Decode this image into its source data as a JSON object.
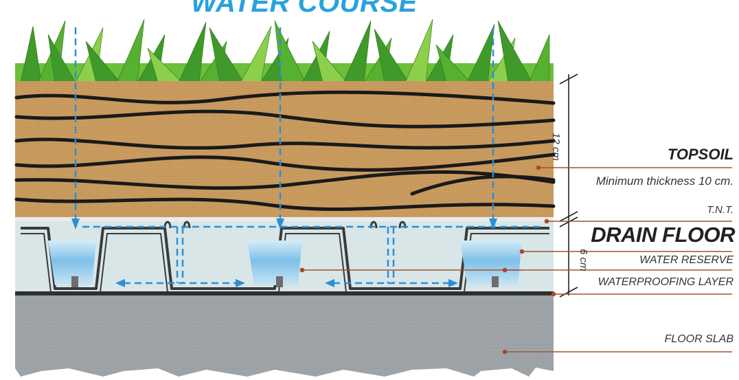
{
  "diagram": {
    "title": "WATER COURSE",
    "labels": {
      "topsoil": "TOPSOIL",
      "min_thickness": "Minimum thickness 10 cm.",
      "tnt": "T.N.T.",
      "drain_floor": "DRAIN FLOOR",
      "water_reserve": "WATER RESERVE",
      "waterproofing": "WATERPROOFING LAYER",
      "floor_slab": "FLOOR SLAB"
    },
    "dimensions": {
      "topsoil_depth": "12 cm",
      "drain_depth": "6 cm"
    },
    "colors": {
      "title": "#2aa2dc",
      "grass": "#3f9a2a",
      "soil": "#c99a5e",
      "soil_streaks": "#1a1a1a",
      "drain_panel": "#cfe3e6",
      "water": "#6fb8e6",
      "arrows": "#2b8fd6",
      "slab": "#9ea3a8",
      "leader_lines": "#a0522d"
    }
  }
}
